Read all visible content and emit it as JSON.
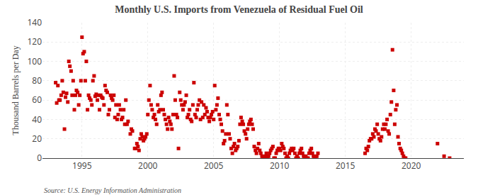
{
  "chart_data": {
    "type": "scatter",
    "title": "Monthly U.S. Imports from Venezuela of Residual Fuel Oil",
    "ylabel": "Thousand Barrels per Day",
    "annotations": [
      "Source: U.S. Energy Information Administration"
    ],
    "xlim": [
      1992.0,
      2024.0
    ],
    "ylim": [
      0,
      140
    ],
    "xticks": [
      1995,
      2000,
      2005,
      2010,
      2015,
      2020
    ],
    "yticks": [
      0,
      20,
      40,
      60,
      80,
      100,
      120,
      140
    ],
    "grid": true,
    "color": "#cc0000",
    "marker": "square",
    "x": [
      1993.0,
      1993.08,
      1993.17,
      1993.25,
      1993.33,
      1993.42,
      1993.5,
      1993.58,
      1993.67,
      1993.75,
      1993.83,
      1993.92,
      1994.0,
      1994.08,
      1994.17,
      1994.25,
      1994.33,
      1994.42,
      1994.5,
      1994.58,
      1994.67,
      1994.75,
      1994.83,
      1994.92,
      1995.0,
      1995.08,
      1995.17,
      1995.25,
      1995.33,
      1995.42,
      1995.5,
      1995.58,
      1995.67,
      1995.75,
      1995.83,
      1995.92,
      1996.0,
      1996.08,
      1996.17,
      1996.25,
      1996.33,
      1996.42,
      1996.5,
      1996.58,
      1996.67,
      1996.75,
      1996.83,
      1996.92,
      1997.0,
      1997.08,
      1997.17,
      1997.25,
      1997.33,
      1997.42,
      1997.5,
      1997.58,
      1997.67,
      1997.75,
      1997.83,
      1997.92,
      1998.0,
      1998.08,
      1998.17,
      1998.25,
      1998.33,
      1998.42,
      1998.5,
      1998.67,
      1998.75,
      1998.83,
      1999.0,
      1999.08,
      1999.17,
      1999.25,
      1999.33,
      1999.42,
      1999.5,
      1999.58,
      1999.67,
      1999.75,
      1999.83,
      1999.92,
      2000.0,
      2000.08,
      2000.17,
      2000.25,
      2000.33,
      2000.42,
      2000.5,
      2000.58,
      2000.67,
      2000.75,
      2000.83,
      2000.92,
      2001.0,
      2001.08,
      2001.17,
      2001.25,
      2001.33,
      2001.42,
      2001.5,
      2001.58,
      2001.67,
      2001.75,
      2001.83,
      2001.92,
      2002.0,
      2002.08,
      2002.17,
      2002.25,
      2002.33,
      2002.42,
      2002.5,
      2002.58,
      2002.67,
      2002.75,
      2002.83,
      2002.92,
      2003.0,
      2003.08,
      2003.17,
      2003.25,
      2003.33,
      2003.42,
      2003.5,
      2003.58,
      2003.67,
      2003.75,
      2003.83,
      2003.92,
      2004.0,
      2004.08,
      2004.17,
      2004.25,
      2004.33,
      2004.42,
      2004.5,
      2004.58,
      2004.67,
      2004.75,
      2004.83,
      2004.92,
      2005.0,
      2005.08,
      2005.17,
      2005.25,
      2005.33,
      2005.42,
      2005.5,
      2005.58,
      2005.67,
      2005.75,
      2005.83,
      2005.92,
      2006.0,
      2006.08,
      2006.17,
      2006.25,
      2006.33,
      2006.42,
      2006.5,
      2006.58,
      2006.67,
      2006.75,
      2006.83,
      2006.92,
      2007.0,
      2007.08,
      2007.17,
      2007.25,
      2007.33,
      2007.42,
      2007.5,
      2007.58,
      2007.67,
      2007.75,
      2007.83,
      2007.92,
      2008.0,
      2008.08,
      2008.17,
      2008.25,
      2008.33,
      2008.42,
      2008.5,
      2008.58,
      2008.67,
      2008.75,
      2008.83,
      2008.92,
      2009.0,
      2009.08,
      2009.17,
      2009.25,
      2009.33,
      2009.42,
      2009.5,
      2009.58,
      2009.67,
      2009.75,
      2009.83,
      2009.92,
      2010.0,
      2010.08,
      2010.17,
      2010.25,
      2010.33,
      2010.42,
      2010.5,
      2010.58,
      2010.67,
      2010.75,
      2010.83,
      2010.92,
      2011.0,
      2011.08,
      2011.17,
      2011.25,
      2011.33,
      2011.42,
      2011.5,
      2011.58,
      2011.67,
      2011.75,
      2011.83,
      2011.92,
      2012.0,
      2012.08,
      2012.17,
      2012.25,
      2012.33,
      2012.42,
      2012.5,
      2012.58,
      2012.67,
      2012.75,
      2012.83,
      2012.92,
      2016.5,
      2016.58,
      2016.67,
      2016.75,
      2016.83,
      2016.92,
      2017.0,
      2017.08,
      2017.17,
      2017.25,
      2017.33,
      2017.42,
      2017.5,
      2017.58,
      2017.67,
      2017.75,
      2017.83,
      2017.92,
      2018.0,
      2018.08,
      2018.17,
      2018.25,
      2018.33,
      2018.42,
      2018.5,
      2018.58,
      2018.67,
      2018.75,
      2018.83,
      2018.92,
      2019.0,
      2019.08,
      2019.17,
      2019.25,
      2019.33,
      2019.42,
      2019.5,
      2019.58,
      2022.0,
      2022.5,
      2022.92
    ],
    "values": [
      78,
      57,
      75,
      60,
      60,
      65,
      80,
      68,
      30,
      63,
      67,
      58,
      100,
      95,
      90,
      65,
      80,
      50,
      65,
      70,
      68,
      55,
      65,
      80,
      125,
      108,
      110,
      80,
      100,
      50,
      65,
      62,
      60,
      55,
      80,
      85,
      64,
      66,
      60,
      65,
      50,
      65,
      63,
      62,
      55,
      75,
      70,
      68,
      45,
      50,
      65,
      62,
      60,
      65,
      42,
      55,
      40,
      45,
      55,
      50,
      40,
      42,
      50,
      35,
      60,
      35,
      38,
      25,
      30,
      28,
      10,
      10,
      15,
      12,
      8,
      20,
      25,
      22,
      18,
      20,
      22,
      25,
      45,
      60,
      75,
      55,
      50,
      42,
      45,
      40,
      35,
      55,
      48,
      50,
      65,
      68,
      50,
      45,
      40,
      35,
      30,
      42,
      38,
      35,
      30,
      45,
      85,
      60,
      45,
      42,
      10,
      68,
      60,
      55,
      50,
      55,
      58,
      65,
      42,
      45,
      50,
      40,
      38,
      55,
      78,
      45,
      42,
      50,
      55,
      60,
      40,
      58,
      42,
      55,
      45,
      52,
      48,
      42,
      38,
      42,
      45,
      48,
      40,
      75,
      50,
      55,
      62,
      45,
      40,
      35,
      28,
      15,
      18,
      25,
      55,
      45,
      25,
      20,
      10,
      5,
      12,
      15,
      8,
      10,
      12,
      18,
      35,
      42,
      38,
      35,
      28,
      25,
      20,
      30,
      35,
      38,
      40,
      35,
      30,
      12,
      8,
      5,
      10,
      15,
      8,
      5,
      2,
      0,
      0,
      2,
      5,
      0,
      2,
      5,
      8,
      10,
      12,
      0,
      0,
      5,
      8,
      10,
      10,
      8,
      15,
      12,
      10,
      5,
      0,
      2,
      0,
      5,
      8,
      10,
      8,
      10,
      5,
      0,
      2,
      0,
      5,
      8,
      10,
      5,
      2,
      0,
      2,
      0,
      0,
      5,
      8,
      10,
      5,
      2,
      0,
      0,
      2,
      5,
      5,
      10,
      8,
      12,
      18,
      20,
      20,
      25,
      22,
      30,
      28,
      35,
      25,
      20,
      18,
      22,
      30,
      35,
      30,
      35,
      40,
      28,
      25,
      45,
      58,
      112,
      70,
      35,
      50,
      55,
      22,
      15,
      10,
      8,
      5,
      2,
      0,
      0,
      15,
      2,
      0
    ]
  }
}
